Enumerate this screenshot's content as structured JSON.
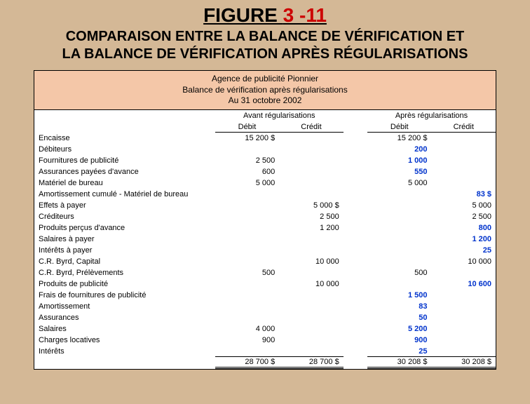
{
  "figure": {
    "prefix": "FIGURE ",
    "number": "3 -11"
  },
  "subtitle_line1": "COMPARAISON ENTRE LA BALANCE DE VÉRIFICATION ET",
  "subtitle_line2": "LA  BALANCE DE VÉRIFICATION APRÈS RÉGULARISATIONS",
  "header": {
    "company": "Agence de publicité Pionnier",
    "report": "Balance de vérification après régularisations",
    "date": "Au 31 octobre 2002"
  },
  "sections": {
    "before": "Avant régularisations",
    "after": "Après régularisations"
  },
  "columns": {
    "debit": "Débit",
    "credit": "Crédit"
  },
  "rows": [
    {
      "label": "Encaisse",
      "bd": "15 200 $",
      "bc": "",
      "ad": "15 200 $",
      "ac": ""
    },
    {
      "label": "Débiteurs",
      "bd": "",
      "bc": "",
      "ad": "200",
      "ac": "",
      "blue": true
    },
    {
      "label": "Fournitures de publicité",
      "bd": "2 500",
      "bc": "",
      "ad": "1 000",
      "ac": "",
      "blue": true
    },
    {
      "label": "Assurances payées d'avance",
      "bd": "600",
      "bc": "",
      "ad": "550",
      "ac": "",
      "blue": true
    },
    {
      "label": "Matériel de bureau",
      "bd": "5 000",
      "bc": "",
      "ad": "5 000",
      "ac": ""
    },
    {
      "label": "Amortissement cumulé - Matériel de bureau",
      "bd": "",
      "bc": "",
      "ad": "",
      "ac": "83 $",
      "blue": true
    },
    {
      "label": "Effets à payer",
      "bd": "",
      "bc": "5 000 $",
      "ad": "",
      "ac": "5 000"
    },
    {
      "label": "Créditeurs",
      "bd": "",
      "bc": "2 500",
      "ad": "",
      "ac": "2 500"
    },
    {
      "label": "Produits perçus d'avance",
      "bd": "",
      "bc": "1 200",
      "ad": "",
      "ac": "800",
      "blue": true
    },
    {
      "label": "Salaires à payer",
      "bd": "",
      "bc": "",
      "ad": "",
      "ac": "1 200",
      "blue": true
    },
    {
      "label": "Intérêts à payer",
      "bd": "",
      "bc": "",
      "ad": "",
      "ac": "25",
      "blue": true
    },
    {
      "label": "C.R. Byrd, Capital",
      "bd": "",
      "bc": "10 000",
      "ad": "",
      "ac": "10 000"
    },
    {
      "label": "C.R. Byrd, Prélèvements",
      "bd": "500",
      "bc": "",
      "ad": "500",
      "ac": ""
    },
    {
      "label": "Produits de publicité",
      "bd": "",
      "bc": "10 000",
      "ad": "",
      "ac": "10 600",
      "blue": true
    },
    {
      "label": "Frais de fournitures de publicité",
      "bd": "",
      "bc": "",
      "ad": "1 500",
      "ac": "",
      "blue": true
    },
    {
      "label": "Amortissement",
      "bd": "",
      "bc": "",
      "ad": "83",
      "ac": "",
      "blue": true
    },
    {
      "label": "Assurances",
      "bd": "",
      "bc": "",
      "ad": "50",
      "ac": "",
      "blue": true
    },
    {
      "label": "Salaires",
      "bd": "4 000",
      "bc": "",
      "ad": "5 200",
      "ac": "",
      "blue": true
    },
    {
      "label": "Charges locatives",
      "bd": "900",
      "bc": "",
      "ad": "900",
      "ac": "",
      "blue": true
    },
    {
      "label": "Intérêts",
      "bd": "",
      "bc": "",
      "ad": "25",
      "ac": "",
      "blue": true
    }
  ],
  "totals": {
    "bd": "28 700 $",
    "bc": "28 700 $",
    "ad": "30 208 $",
    "ac": "30 208 $"
  }
}
